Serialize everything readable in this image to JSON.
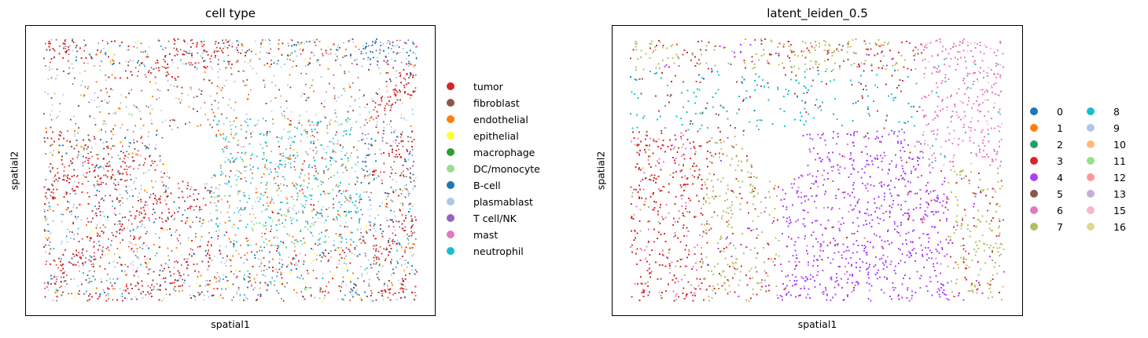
{
  "chart_data": [
    {
      "type": "scatter",
      "title": "cell type",
      "xlabel": "spatial1",
      "ylabel": "spatial2",
      "grid": false,
      "legend_placement": "right",
      "legend": [
        {
          "label": "tumor",
          "color": "#d62728"
        },
        {
          "label": "fibroblast",
          "color": "#8c564b"
        },
        {
          "label": "endothelial",
          "color": "#ff7f0e"
        },
        {
          "label": "epithelial",
          "color": "#ffff33"
        },
        {
          "label": "macrophage",
          "color": "#2ca02c"
        },
        {
          "label": "DC/monocyte",
          "color": "#98df8a"
        },
        {
          "label": "B-cell",
          "color": "#1f77b4"
        },
        {
          "label": "plasmablast",
          "color": "#aec7e8"
        },
        {
          "label": "T cell/NK",
          "color": "#9467bd"
        },
        {
          "label": "mast",
          "color": "#e377c2"
        },
        {
          "label": "neutrophil",
          "color": "#17becf"
        }
      ]
    },
    {
      "type": "scatter",
      "title": "latent_leiden_0.5",
      "xlabel": "spatial1",
      "ylabel": "spatial2",
      "grid": false,
      "legend_placement": "right",
      "legend": [
        {
          "label": "0",
          "color": "#1f77b4"
        },
        {
          "label": "1",
          "color": "#ff7f0e"
        },
        {
          "label": "2",
          "color": "#279e68"
        },
        {
          "label": "3",
          "color": "#d62728"
        },
        {
          "label": "4",
          "color": "#aa40fc"
        },
        {
          "label": "5",
          "color": "#8c564b"
        },
        {
          "label": "6",
          "color": "#e377c2"
        },
        {
          "label": "7",
          "color": "#b5bd61"
        },
        {
          "label": "8",
          "color": "#17becf"
        },
        {
          "label": "9",
          "color": "#aec7e8"
        },
        {
          "label": "10",
          "color": "#ffbb78"
        },
        {
          "label": "11",
          "color": "#98df8a"
        },
        {
          "label": "12",
          "color": "#ff9896"
        },
        {
          "label": "13",
          "color": "#c5b0d5"
        },
        {
          "label": "15",
          "color": "#f7b6d2"
        },
        {
          "label": "16",
          "color": "#dbdb8d"
        }
      ]
    }
  ]
}
